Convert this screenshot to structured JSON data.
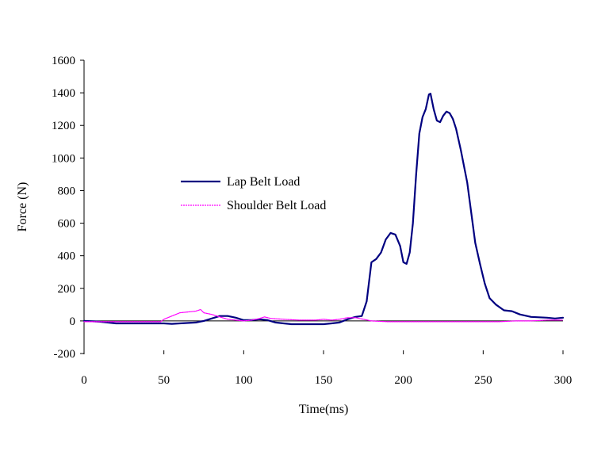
{
  "chart_data": {
    "type": "line",
    "xlabel": "Time(ms)",
    "ylabel": "Force (N)",
    "xlim": [
      0,
      300
    ],
    "ylim": [
      -200,
      1600
    ],
    "x_ticks": [
      0,
      50,
      100,
      150,
      200,
      250,
      300
    ],
    "y_ticks": [
      -200,
      0,
      200,
      400,
      600,
      800,
      1000,
      1200,
      1400,
      1600
    ],
    "y_tick_labels": [
      "-200",
      "0",
      "200",
      "400",
      "600",
      "800",
      "1000",
      "1200",
      "1400",
      "1600"
    ],
    "grid": false,
    "legend": "center-left",
    "series": [
      {
        "name": "Lap Belt Load",
        "color": "#000080",
        "style": "solid",
        "points": [
          [
            0,
            0
          ],
          [
            10,
            -5
          ],
          [
            20,
            -15
          ],
          [
            30,
            -15
          ],
          [
            40,
            -15
          ],
          [
            50,
            -15
          ],
          [
            55,
            -18
          ],
          [
            60,
            -15
          ],
          [
            70,
            -10
          ],
          [
            75,
            0
          ],
          [
            80,
            15
          ],
          [
            85,
            30
          ],
          [
            90,
            30
          ],
          [
            95,
            20
          ],
          [
            100,
            5
          ],
          [
            105,
            5
          ],
          [
            110,
            10
          ],
          [
            115,
            5
          ],
          [
            120,
            -10
          ],
          [
            125,
            -15
          ],
          [
            130,
            -20
          ],
          [
            140,
            -20
          ],
          [
            150,
            -20
          ],
          [
            155,
            -15
          ],
          [
            160,
            -10
          ],
          [
            165,
            10
          ],
          [
            170,
            25
          ],
          [
            174,
            30
          ],
          [
            177,
            120
          ],
          [
            180,
            360
          ],
          [
            183,
            380
          ],
          [
            186,
            420
          ],
          [
            189,
            500
          ],
          [
            192,
            540
          ],
          [
            195,
            530
          ],
          [
            198,
            460
          ],
          [
            200,
            360
          ],
          [
            202,
            350
          ],
          [
            204,
            420
          ],
          [
            206,
            600
          ],
          [
            208,
            900
          ],
          [
            210,
            1150
          ],
          [
            212,
            1250
          ],
          [
            214,
            1300
          ],
          [
            216,
            1390
          ],
          [
            217,
            1395
          ],
          [
            219,
            1300
          ],
          [
            221,
            1230
          ],
          [
            223,
            1220
          ],
          [
            225,
            1260
          ],
          [
            227,
            1285
          ],
          [
            229,
            1275
          ],
          [
            231,
            1240
          ],
          [
            233,
            1180
          ],
          [
            236,
            1050
          ],
          [
            240,
            850
          ],
          [
            245,
            480
          ],
          [
            248,
            350
          ],
          [
            251,
            230
          ],
          [
            254,
            140
          ],
          [
            258,
            100
          ],
          [
            263,
            65
          ],
          [
            268,
            60
          ],
          [
            273,
            40
          ],
          [
            280,
            25
          ],
          [
            290,
            20
          ],
          [
            295,
            15
          ],
          [
            300,
            20
          ]
        ]
      },
      {
        "name": "Shoulder Belt Load",
        "color": "#ff00ff",
        "style": "dashed",
        "points": [
          [
            0,
            -5
          ],
          [
            10,
            -5
          ],
          [
            20,
            -5
          ],
          [
            30,
            -5
          ],
          [
            40,
            -5
          ],
          [
            48,
            -5
          ],
          [
            50,
            10
          ],
          [
            55,
            30
          ],
          [
            60,
            50
          ],
          [
            65,
            55
          ],
          [
            70,
            60
          ],
          [
            73,
            70
          ],
          [
            75,
            50
          ],
          [
            80,
            40
          ],
          [
            85,
            25
          ],
          [
            90,
            10
          ],
          [
            95,
            5
          ],
          [
            100,
            0
          ],
          [
            105,
            5
          ],
          [
            110,
            15
          ],
          [
            113,
            25
          ],
          [
            117,
            15
          ],
          [
            125,
            10
          ],
          [
            135,
            5
          ],
          [
            145,
            5
          ],
          [
            150,
            10
          ],
          [
            155,
            5
          ],
          [
            160,
            10
          ],
          [
            165,
            20
          ],
          [
            170,
            20
          ],
          [
            175,
            10
          ],
          [
            180,
            0
          ],
          [
            190,
            -5
          ],
          [
            200,
            -5
          ],
          [
            220,
            -5
          ],
          [
            240,
            -5
          ],
          [
            260,
            -5
          ],
          [
            270,
            0
          ],
          [
            280,
            0
          ],
          [
            290,
            5
          ],
          [
            300,
            5
          ]
        ]
      }
    ]
  }
}
